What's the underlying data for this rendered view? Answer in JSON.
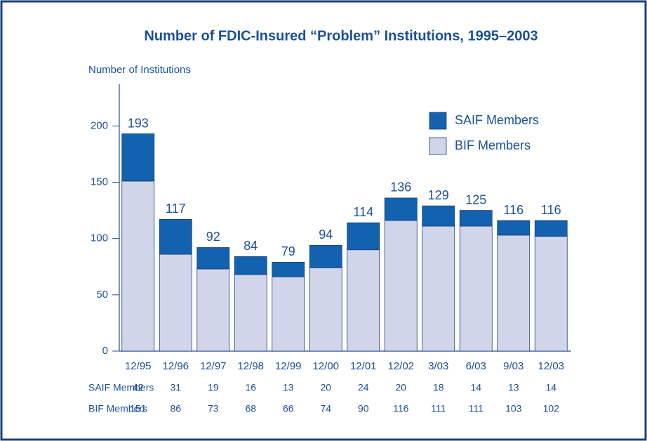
{
  "chart_data": {
    "type": "bar",
    "stacked": true,
    "title": "Number of FDIC-Insured “Problem” Institutions, 1995–2003",
    "y_label": "Number of Institutions",
    "categories": [
      "12/95",
      "12/96",
      "12/97",
      "12/98",
      "12/99",
      "12/00",
      "12/01",
      "12/02",
      "3/03",
      "6/03",
      "9/03",
      "12/03"
    ],
    "series": [
      {
        "name": "BIF Members",
        "color": "#d1d5ea",
        "values": [
          151,
          86,
          73,
          68,
          66,
          74,
          90,
          116,
          111,
          111,
          103,
          102
        ]
      },
      {
        "name": "SAIF Members",
        "color": "#1262b0",
        "values": [
          42,
          31,
          19,
          16,
          13,
          20,
          24,
          20,
          18,
          14,
          13,
          14
        ]
      }
    ],
    "totals": [
      193,
      117,
      92,
      84,
      79,
      94,
      114,
      136,
      129,
      125,
      116,
      116
    ],
    "ylim": [
      0,
      237
    ],
    "yticks": [
      0,
      50,
      100,
      150,
      200
    ],
    "legend": "upper right",
    "grid": false
  }
}
